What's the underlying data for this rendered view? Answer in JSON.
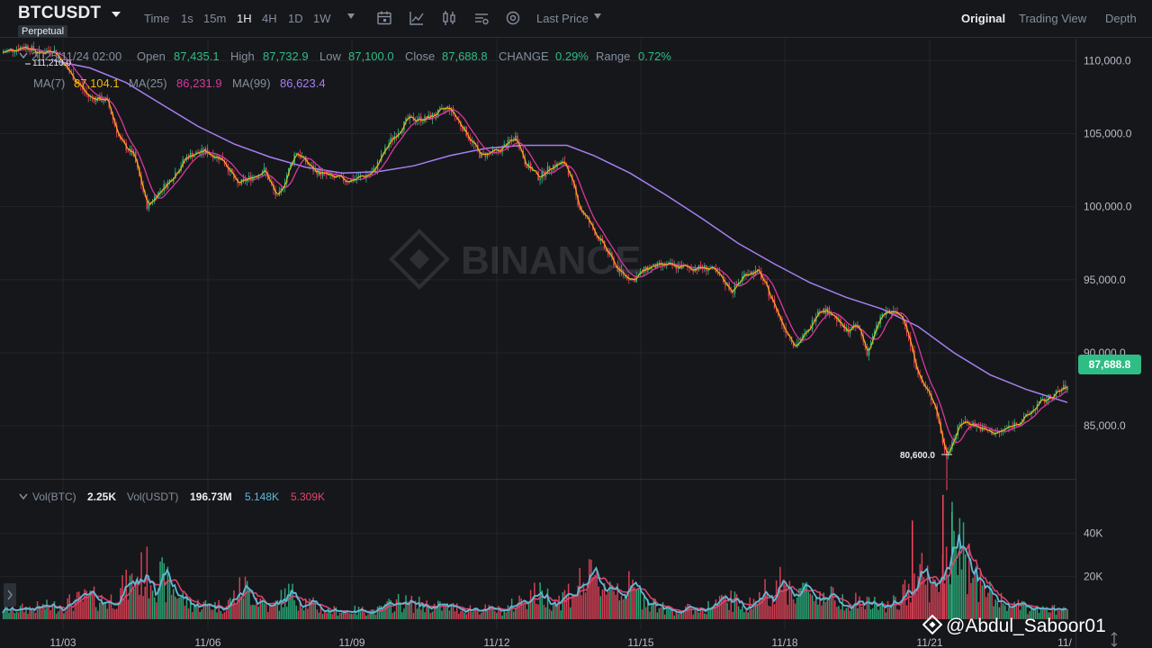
{
  "header": {
    "symbol": "BTCUSDT",
    "contract_type": "Perpetual",
    "timeframes": [
      "Time",
      "1s",
      "15m",
      "1H",
      "4H",
      "1D",
      "1W"
    ],
    "active_timeframe": "1H",
    "price_source": "Last Price",
    "views": [
      "Original",
      "Trading View",
      "Depth"
    ],
    "active_view": "Original",
    "icons": [
      "calendar-icon",
      "line-chart-icon",
      "candle-type-icon",
      "indicator-settings-icon",
      "settings-gear-icon"
    ]
  },
  "ohlc": {
    "datetime": "2025/11/24 02:00",
    "open_label": "Open",
    "open": "87,435.1",
    "high_label": "High",
    "high": "87,732.9",
    "low_label": "Low",
    "low": "87,100.0",
    "close_label": "Close",
    "close": "87,688.8",
    "change_label": "CHANGE",
    "change": "0.29%",
    "range_label": "Range",
    "range": "0.72%"
  },
  "moving_averages": {
    "ma7_label": "MA(7)",
    "ma7": "87,104.1",
    "ma25_label": "MA(25)",
    "ma25": "86,231.9",
    "ma99_label": "MA(99)",
    "ma99": "86,623.4"
  },
  "volume": {
    "vol_btc_label": "Vol(BTC)",
    "vol_btc": "2.25K",
    "vol_usdt_label": "Vol(USDT)",
    "vol_usdt": "196.73M",
    "ma_fast": "5.148K",
    "ma_slow": "5.309K"
  },
  "current_price": "87,688.8",
  "watermark_text": "@Abdul_Saboor01",
  "background_watermark": "BINANCE",
  "colors": {
    "up": "#2ebd85",
    "down": "#f6465d",
    "ma7": "#f0b90b",
    "ma25": "#d6399f",
    "ma99": "#a67ff0",
    "vol_fast": "#5fb9d8",
    "vol_slow": "#e0466d"
  },
  "chart_data": {
    "type": "candlestick",
    "price_axis_ticks": [
      "110,000.0",
      "105,000.0",
      "100,000.0",
      "95,000.0",
      "90,000.0",
      "85,000.0"
    ],
    "price_range": [
      81500,
      111500
    ],
    "volume_axis_ticks": [
      "40K",
      "20K"
    ],
    "volume_range": [
      0,
      60000
    ],
    "date_ticks": [
      "11/03",
      "11/06",
      "11/09",
      "11/12",
      "11/15",
      "11/18",
      "11/21",
      "11/"
    ],
    "annotations": {
      "high_marker": "111,210.0",
      "low_marker": "80,600.0"
    },
    "price_path": [
      [
        0,
        110500
      ],
      [
        30,
        111000
      ],
      [
        45,
        110500
      ],
      [
        60,
        110800
      ],
      [
        75,
        109500
      ],
      [
        100,
        107500
      ],
      [
        120,
        107300
      ],
      [
        135,
        104500
      ],
      [
        150,
        103500
      ],
      [
        165,
        100000
      ],
      [
        175,
        100800
      ],
      [
        190,
        101800
      ],
      [
        210,
        103500
      ],
      [
        230,
        103800
      ],
      [
        250,
        103200
      ],
      [
        265,
        101500
      ],
      [
        280,
        102000
      ],
      [
        295,
        102500
      ],
      [
        310,
        100500
      ],
      [
        330,
        103800
      ],
      [
        350,
        102500
      ],
      [
        370,
        102000
      ],
      [
        390,
        101800
      ],
      [
        415,
        102300
      ],
      [
        435,
        104500
      ],
      [
        455,
        106000
      ],
      [
        475,
        106000
      ],
      [
        500,
        106800
      ],
      [
        520,
        105000
      ],
      [
        535,
        103500
      ],
      [
        555,
        103800
      ],
      [
        575,
        104800
      ],
      [
        585,
        103000
      ],
      [
        600,
        102000
      ],
      [
        615,
        102800
      ],
      [
        630,
        103000
      ],
      [
        645,
        100000
      ],
      [
        660,
        98500
      ],
      [
        675,
        97000
      ],
      [
        690,
        95500
      ],
      [
        705,
        95000
      ],
      [
        720,
        95800
      ],
      [
        740,
        96000
      ],
      [
        770,
        95800
      ],
      [
        790,
        95800
      ],
      [
        800,
        95300
      ],
      [
        815,
        94200
      ],
      [
        830,
        95500
      ],
      [
        845,
        95500
      ],
      [
        860,
        93500
      ],
      [
        870,
        92000
      ],
      [
        885,
        90500
      ],
      [
        900,
        91500
      ],
      [
        910,
        93000
      ],
      [
        925,
        92800
      ],
      [
        940,
        91500
      ],
      [
        955,
        91800
      ],
      [
        965,
        90000
      ],
      [
        980,
        92500
      ],
      [
        990,
        92800
      ],
      [
        1005,
        92500
      ],
      [
        1015,
        90000
      ],
      [
        1025,
        88000
      ],
      [
        1040,
        86500
      ],
      [
        1052,
        83000
      ],
      [
        1060,
        84000
      ],
      [
        1070,
        85300
      ],
      [
        1080,
        85200
      ],
      [
        1095,
        84700
      ],
      [
        1110,
        84500
      ],
      [
        1125,
        85000
      ],
      [
        1140,
        85500
      ],
      [
        1155,
        86500
      ],
      [
        1170,
        87000
      ],
      [
        1186,
        87700
      ]
    ],
    "ma99_path": [
      [
        60,
        110000
      ],
      [
        100,
        109500
      ],
      [
        140,
        108500
      ],
      [
        180,
        107000
      ],
      [
        220,
        105500
      ],
      [
        260,
        104300
      ],
      [
        300,
        103400
      ],
      [
        340,
        102700
      ],
      [
        380,
        102300
      ],
      [
        420,
        102400
      ],
      [
        460,
        102800
      ],
      [
        500,
        103500
      ],
      [
        540,
        104000
      ],
      [
        580,
        104200
      ],
      [
        630,
        104200
      ],
      [
        660,
        103500
      ],
      [
        700,
        102300
      ],
      [
        740,
        100800
      ],
      [
        780,
        99200
      ],
      [
        820,
        97500
      ],
      [
        860,
        96100
      ],
      [
        900,
        94800
      ],
      [
        940,
        93800
      ],
      [
        980,
        93000
      ],
      [
        1020,
        91800
      ],
      [
        1060,
        90000
      ],
      [
        1100,
        88500
      ],
      [
        1140,
        87500
      ],
      [
        1186,
        86600
      ]
    ],
    "volume_path": [
      [
        0,
        4000
      ],
      [
        60,
        6000
      ],
      [
        100,
        10000
      ],
      [
        120,
        8000
      ],
      [
        160,
        22000
      ],
      [
        180,
        18000
      ],
      [
        210,
        7000
      ],
      [
        250,
        6000
      ],
      [
        270,
        15000
      ],
      [
        300,
        5000
      ],
      [
        320,
        12000
      ],
      [
        360,
        4000
      ],
      [
        420,
        4000
      ],
      [
        440,
        8000
      ],
      [
        480,
        6000
      ],
      [
        520,
        5000
      ],
      [
        560,
        4000
      ],
      [
        590,
        12000
      ],
      [
        620,
        9000
      ],
      [
        650,
        18000
      ],
      [
        700,
        14000
      ],
      [
        740,
        4000
      ],
      [
        780,
        5000
      ],
      [
        810,
        9000
      ],
      [
        830,
        6000
      ],
      [
        860,
        16000
      ],
      [
        900,
        12000
      ],
      [
        940,
        9000
      ],
      [
        980,
        6000
      ],
      [
        1000,
        8000
      ],
      [
        1020,
        25000
      ],
      [
        1040,
        12000
      ],
      [
        1055,
        35000
      ],
      [
        1070,
        30000
      ],
      [
        1090,
        15000
      ],
      [
        1110,
        8000
      ],
      [
        1140,
        5000
      ],
      [
        1186,
        4000
      ]
    ]
  }
}
